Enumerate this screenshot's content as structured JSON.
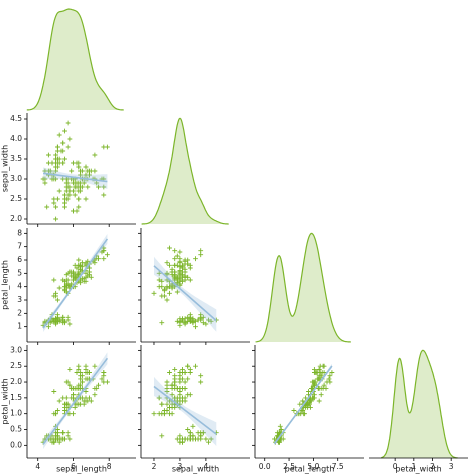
{
  "chart_data": {
    "type": "pairplot",
    "variables": [
      "sepal_length",
      "sepal_width",
      "petal_length",
      "petal_width"
    ],
    "color": "#7cb52a",
    "line_color": "#97bddb",
    "xlim": {
      "sepal_length": [
        3.4,
        9.5
      ],
      "sepal_width": [
        1.5,
        5.7
      ],
      "petal_length": [
        -1.0,
        10.2
      ],
      "petal_width": [
        -1.4,
        3.9
      ]
    },
    "ylim": {
      "sepal_width": [
        1.875,
        4.65
      ],
      "petal_length": [
        -0.15,
        8.4
      ],
      "petal_width": [
        -0.4,
        3.17
      ]
    },
    "xticks": {
      "sepal_length": [
        4,
        6,
        8
      ],
      "sepal_width": [
        2,
        3,
        4
      ],
      "petal_length": [
        {
          "value": 0,
          "label": "0.0"
        },
        2.5,
        {
          "value": 5,
          "label": "5.0"
        },
        7.5
      ],
      "petal_width": [
        0,
        1,
        2,
        3
      ]
    },
    "yticks": {
      "sepal_width": [
        {
          "value": 2,
          "label": "2.0"
        },
        2.5,
        {
          "value": 3,
          "label": "3.0"
        },
        3.5,
        {
          "value": 4,
          "label": "4.0"
        },
        4.5
      ],
      "petal_length": [
        1,
        2,
        3,
        4,
        5,
        6,
        7,
        8
      ],
      "petal_width": [
        {
          "value": 0,
          "label": "0.0"
        },
        0.5,
        {
          "value": 1,
          "label": "1.0"
        },
        1.5,
        {
          "value": 2,
          "label": "2.0"
        },
        2.5,
        {
          "value": 3,
          "label": "3.0"
        }
      ]
    },
    "rows": [
      [
        5.1,
        3.5,
        1.4,
        0.2
      ],
      [
        4.9,
        3.0,
        1.4,
        0.2
      ],
      [
        4.7,
        3.2,
        1.3,
        0.2
      ],
      [
        4.6,
        3.1,
        1.5,
        0.2
      ],
      [
        5.0,
        3.6,
        1.4,
        0.2
      ],
      [
        5.4,
        3.9,
        1.7,
        0.4
      ],
      [
        4.6,
        3.4,
        1.4,
        0.3
      ],
      [
        5.0,
        3.4,
        1.5,
        0.2
      ],
      [
        4.4,
        2.9,
        1.4,
        0.2
      ],
      [
        4.9,
        3.1,
        1.5,
        0.1
      ],
      [
        5.4,
        3.7,
        1.5,
        0.2
      ],
      [
        4.8,
        3.4,
        1.6,
        0.2
      ],
      [
        4.8,
        3.0,
        1.4,
        0.1
      ],
      [
        4.3,
        3.0,
        1.1,
        0.1
      ],
      [
        5.8,
        4.0,
        1.2,
        0.2
      ],
      [
        5.7,
        4.4,
        1.5,
        0.4
      ],
      [
        5.4,
        3.9,
        1.3,
        0.4
      ],
      [
        5.1,
        3.5,
        1.4,
        0.3
      ],
      [
        5.7,
        3.8,
        1.7,
        0.3
      ],
      [
        5.1,
        3.8,
        1.5,
        0.3
      ],
      [
        5.4,
        3.4,
        1.7,
        0.2
      ],
      [
        5.1,
        3.7,
        1.5,
        0.4
      ],
      [
        4.6,
        3.6,
        1.0,
        0.2
      ],
      [
        5.1,
        3.3,
        1.7,
        0.5
      ],
      [
        4.8,
        3.4,
        1.9,
        0.2
      ],
      [
        5.0,
        3.0,
        1.6,
        0.2
      ],
      [
        5.0,
        3.4,
        1.6,
        0.4
      ],
      [
        5.2,
        3.5,
        1.5,
        0.2
      ],
      [
        5.2,
        3.4,
        1.4,
        0.2
      ],
      [
        4.7,
        3.2,
        1.6,
        0.2
      ],
      [
        4.8,
        3.1,
        1.6,
        0.2
      ],
      [
        5.4,
        3.4,
        1.5,
        0.4
      ],
      [
        5.2,
        4.1,
        1.5,
        0.1
      ],
      [
        5.5,
        4.2,
        1.4,
        0.2
      ],
      [
        4.9,
        3.1,
        1.5,
        0.1
      ],
      [
        5.0,
        3.2,
        1.2,
        0.2
      ],
      [
        5.5,
        3.5,
        1.3,
        0.2
      ],
      [
        4.9,
        3.1,
        1.5,
        0.1
      ],
      [
        4.4,
        3.0,
        1.3,
        0.2
      ],
      [
        5.1,
        3.4,
        1.5,
        0.2
      ],
      [
        5.0,
        3.5,
        1.3,
        0.3
      ],
      [
        4.5,
        2.3,
        1.3,
        0.3
      ],
      [
        4.4,
        3.2,
        1.3,
        0.2
      ],
      [
        5.0,
        3.5,
        1.6,
        0.6
      ],
      [
        5.1,
        3.8,
        1.9,
        0.4
      ],
      [
        4.8,
        3.0,
        1.4,
        0.3
      ],
      [
        5.1,
        3.8,
        1.6,
        0.2
      ],
      [
        4.6,
        3.2,
        1.4,
        0.2
      ],
      [
        5.3,
        3.7,
        1.5,
        0.2
      ],
      [
        5.0,
        3.3,
        1.4,
        0.2
      ],
      [
        7.0,
        3.2,
        4.7,
        1.4
      ],
      [
        6.4,
        3.2,
        4.5,
        1.5
      ],
      [
        6.9,
        3.1,
        4.9,
        1.5
      ],
      [
        5.5,
        2.3,
        4.0,
        1.3
      ],
      [
        6.5,
        2.8,
        4.6,
        1.5
      ],
      [
        5.7,
        2.8,
        4.5,
        1.3
      ],
      [
        6.3,
        3.3,
        4.7,
        1.6
      ],
      [
        4.9,
        2.4,
        3.3,
        1.0
      ],
      [
        6.6,
        2.9,
        4.6,
        1.3
      ],
      [
        5.2,
        2.7,
        3.9,
        1.4
      ],
      [
        5.0,
        2.0,
        3.5,
        1.0
      ],
      [
        5.9,
        3.0,
        4.2,
        1.5
      ],
      [
        6.0,
        2.2,
        4.0,
        1.0
      ],
      [
        6.1,
        2.9,
        4.7,
        1.4
      ],
      [
        5.6,
        2.9,
        3.6,
        1.3
      ],
      [
        6.7,
        3.1,
        4.4,
        1.4
      ],
      [
        5.6,
        3.0,
        4.5,
        1.5
      ],
      [
        5.8,
        2.7,
        4.1,
        1.0
      ],
      [
        6.2,
        2.2,
        4.5,
        1.5
      ],
      [
        5.6,
        2.5,
        3.9,
        1.1
      ],
      [
        5.9,
        3.2,
        4.8,
        1.8
      ],
      [
        6.1,
        2.8,
        4.0,
        1.3
      ],
      [
        6.3,
        2.5,
        4.9,
        1.5
      ],
      [
        6.1,
        2.8,
        4.7,
        1.2
      ],
      [
        6.4,
        2.9,
        4.3,
        1.3
      ],
      [
        6.6,
        3.0,
        4.4,
        1.4
      ],
      [
        6.8,
        2.8,
        4.8,
        1.4
      ],
      [
        6.7,
        3.0,
        5.0,
        1.7
      ],
      [
        6.0,
        2.9,
        4.5,
        1.5
      ],
      [
        5.7,
        2.6,
        3.5,
        1.0
      ],
      [
        5.5,
        2.4,
        3.8,
        1.1
      ],
      [
        5.5,
        2.4,
        3.7,
        1.0
      ],
      [
        5.8,
        2.7,
        3.9,
        1.2
      ],
      [
        6.0,
        2.7,
        5.1,
        1.6
      ],
      [
        5.4,
        3.0,
        4.5,
        1.5
      ],
      [
        6.0,
        3.4,
        4.5,
        1.6
      ],
      [
        6.7,
        3.1,
        4.7,
        1.5
      ],
      [
        6.3,
        2.3,
        4.4,
        1.3
      ],
      [
        5.6,
        3.0,
        4.1,
        1.3
      ],
      [
        5.5,
        2.5,
        4.0,
        1.3
      ],
      [
        5.5,
        2.6,
        4.4,
        1.2
      ],
      [
        6.1,
        3.0,
        4.6,
        1.4
      ],
      [
        5.8,
        2.6,
        4.0,
        1.2
      ],
      [
        5.0,
        2.3,
        3.3,
        1.0
      ],
      [
        5.6,
        2.7,
        4.2,
        1.3
      ],
      [
        5.7,
        3.0,
        4.2,
        1.2
      ],
      [
        5.7,
        2.9,
        4.2,
        1.3
      ],
      [
        6.2,
        2.9,
        4.3,
        1.3
      ],
      [
        5.1,
        2.5,
        3.0,
        1.1
      ],
      [
        5.7,
        2.8,
        4.1,
        1.3
      ],
      [
        6.3,
        3.3,
        6.0,
        2.5
      ],
      [
        5.8,
        2.7,
        5.1,
        1.9
      ],
      [
        7.1,
        3.0,
        5.9,
        2.1
      ],
      [
        6.3,
        2.9,
        5.6,
        1.8
      ],
      [
        6.5,
        3.0,
        5.8,
        2.2
      ],
      [
        7.6,
        3.0,
        6.6,
        2.1
      ],
      [
        4.9,
        2.5,
        4.5,
        1.7
      ],
      [
        7.3,
        2.9,
        6.3,
        1.8
      ],
      [
        6.7,
        2.5,
        5.8,
        1.8
      ],
      [
        7.2,
        3.6,
        6.1,
        2.5
      ],
      [
        6.5,
        3.2,
        5.1,
        2.0
      ],
      [
        6.4,
        2.7,
        5.3,
        1.9
      ],
      [
        6.8,
        3.0,
        5.5,
        2.1
      ],
      [
        5.7,
        2.5,
        5.0,
        2.0
      ],
      [
        5.8,
        2.8,
        5.1,
        2.4
      ],
      [
        6.4,
        3.2,
        5.3,
        2.3
      ],
      [
        6.5,
        3.0,
        5.5,
        1.8
      ],
      [
        7.7,
        3.8,
        6.7,
        2.2
      ],
      [
        7.7,
        2.6,
        6.9,
        2.3
      ],
      [
        6.0,
        2.2,
        5.0,
        1.5
      ],
      [
        6.9,
        3.2,
        5.7,
        2.3
      ],
      [
        5.6,
        2.8,
        4.9,
        2.0
      ],
      [
        7.7,
        2.8,
        6.7,
        2.0
      ],
      [
        6.3,
        2.7,
        4.9,
        1.8
      ],
      [
        6.7,
        3.3,
        5.7,
        2.1
      ],
      [
        7.2,
        3.2,
        6.0,
        1.8
      ],
      [
        6.2,
        2.8,
        4.8,
        1.8
      ],
      [
        6.1,
        3.0,
        4.9,
        1.8
      ],
      [
        6.4,
        2.8,
        5.6,
        2.1
      ],
      [
        7.2,
        3.0,
        5.8,
        1.6
      ],
      [
        7.4,
        2.8,
        6.1,
        1.9
      ],
      [
        7.9,
        3.8,
        6.4,
        2.0
      ],
      [
        6.4,
        2.8,
        5.6,
        2.2
      ],
      [
        6.3,
        2.8,
        5.1,
        1.5
      ],
      [
        6.1,
        2.6,
        5.6,
        1.4
      ],
      [
        7.7,
        3.0,
        6.1,
        2.3
      ],
      [
        6.3,
        3.4,
        5.6,
        2.4
      ],
      [
        6.4,
        3.1,
        5.5,
        1.8
      ],
      [
        6.0,
        3.0,
        4.8,
        1.8
      ],
      [
        6.9,
        3.1,
        5.4,
        2.1
      ],
      [
        6.7,
        3.1,
        5.6,
        2.4
      ],
      [
        6.9,
        3.1,
        5.1,
        2.3
      ],
      [
        5.8,
        2.7,
        5.1,
        1.9
      ],
      [
        6.8,
        3.2,
        5.9,
        2.3
      ],
      [
        6.7,
        3.3,
        5.7,
        2.5
      ],
      [
        6.7,
        3.0,
        5.2,
        2.3
      ],
      [
        6.3,
        2.5,
        5.0,
        1.9
      ],
      [
        6.5,
        3.0,
        5.2,
        2.0
      ],
      [
        6.2,
        3.4,
        5.4,
        2.3
      ],
      [
        5.9,
        3.0,
        5.1,
        1.8
      ]
    ]
  }
}
